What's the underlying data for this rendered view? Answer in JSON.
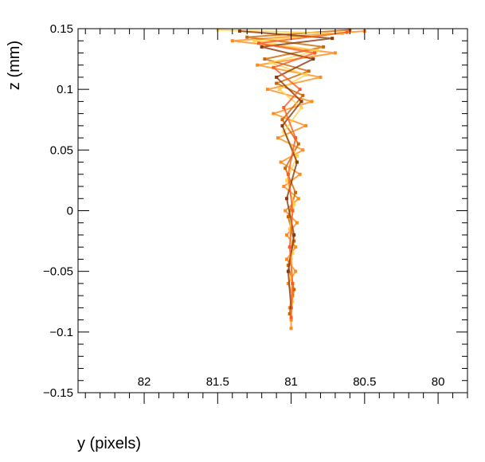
{
  "chart_data": {
    "type": "scatter",
    "title": "",
    "xlabel": "y (pixels)",
    "ylabel": "z (mm)",
    "xlim": [
      82.45,
      79.8
    ],
    "ylim": [
      -0.15,
      0.15
    ],
    "x_axis_reversed": true,
    "grid": false,
    "legend": "none",
    "xticks": [
      {
        "value": 82,
        "label": "82"
      },
      {
        "value": 81.5,
        "label": "81.5"
      },
      {
        "value": 81,
        "label": "81"
      },
      {
        "value": 80.5,
        "label": "80.5"
      },
      {
        "value": 80,
        "label": "80"
      }
    ],
    "yticks": [
      {
        "value": 0.15,
        "label": "0.15"
      },
      {
        "value": 0.1,
        "label": "0.1"
      },
      {
        "value": 0.05,
        "label": "0.05"
      },
      {
        "value": 0,
        "label": "0"
      },
      {
        "value": -0.05,
        "label": "−0.05"
      },
      {
        "value": -0.1,
        "label": "−0.1"
      },
      {
        "value": -0.15,
        "label": "−0.15"
      }
    ],
    "series": [
      {
        "color": "#ff8c1a",
        "points": [
          [
            81.0,
            -0.097
          ],
          [
            81.0,
            -0.09
          ],
          [
            81.01,
            -0.08
          ],
          [
            80.99,
            -0.07
          ],
          [
            81.02,
            -0.06
          ],
          [
            80.97,
            -0.05
          ],
          [
            81.03,
            -0.04
          ],
          [
            80.97,
            -0.03
          ],
          [
            81.03,
            -0.02
          ],
          [
            80.96,
            -0.01
          ],
          [
            81.04,
            0.0
          ],
          [
            80.95,
            0.01
          ],
          [
            81.05,
            0.02
          ],
          [
            80.94,
            0.03
          ],
          [
            81.07,
            0.04
          ],
          [
            80.92,
            0.05
          ],
          [
            81.09,
            0.06
          ],
          [
            80.9,
            0.07
          ],
          [
            81.12,
            0.08
          ],
          [
            80.86,
            0.09
          ],
          [
            81.16,
            0.1
          ],
          [
            80.8,
            0.11
          ],
          [
            81.23,
            0.12
          ],
          [
            80.7,
            0.13
          ],
          [
            81.4,
            0.14
          ],
          [
            80.5,
            0.148
          ]
        ]
      },
      {
        "color": "#cc6600",
        "points": [
          [
            81.01,
            -0.085
          ],
          [
            80.98,
            -0.065
          ],
          [
            81.02,
            -0.045
          ],
          [
            80.98,
            -0.025
          ],
          [
            81.02,
            -0.005
          ],
          [
            80.97,
            0.015
          ],
          [
            81.04,
            0.035
          ],
          [
            80.95,
            0.055
          ],
          [
            81.06,
            0.075
          ],
          [
            80.92,
            0.095
          ],
          [
            81.1,
            0.105
          ],
          [
            80.88,
            0.115
          ],
          [
            81.18,
            0.125
          ],
          [
            80.78,
            0.135
          ],
          [
            81.3,
            0.143
          ],
          [
            80.6,
            0.149
          ]
        ]
      },
      {
        "color": "#ffd24d",
        "points": [
          [
            80.99,
            -0.075
          ],
          [
            81.0,
            -0.055
          ],
          [
            80.99,
            -0.035
          ],
          [
            81.01,
            -0.015
          ],
          [
            80.98,
            0.005
          ],
          [
            81.03,
            0.025
          ],
          [
            80.96,
            0.045
          ],
          [
            81.05,
            0.065
          ],
          [
            80.93,
            0.085
          ],
          [
            81.08,
            0.1
          ],
          [
            80.9,
            0.112
          ],
          [
            81.14,
            0.122
          ],
          [
            80.82,
            0.132
          ],
          [
            81.25,
            0.14
          ],
          [
            80.65,
            0.146
          ],
          [
            81.5,
            0.149
          ]
        ]
      },
      {
        "color": "#8b3a0a",
        "points": [
          [
            81.0,
            -0.08
          ],
          [
            81.02,
            -0.05
          ],
          [
            80.98,
            -0.02
          ],
          [
            81.03,
            0.01
          ],
          [
            80.96,
            0.04
          ],
          [
            81.06,
            0.07
          ],
          [
            80.93,
            0.09
          ],
          [
            81.1,
            0.11
          ],
          [
            80.85,
            0.125
          ],
          [
            81.2,
            0.135
          ],
          [
            80.72,
            0.142
          ],
          [
            81.35,
            0.148
          ]
        ]
      },
      {
        "color": "#ff5a1f",
        "points": [
          [
            81.0,
            -0.088
          ],
          [
            80.99,
            -0.06
          ],
          [
            81.01,
            -0.03
          ],
          [
            80.99,
            0.0
          ],
          [
            81.02,
            0.03
          ],
          [
            80.97,
            0.06
          ],
          [
            81.05,
            0.085
          ],
          [
            80.94,
            0.1
          ],
          [
            81.12,
            0.118
          ],
          [
            80.84,
            0.13
          ],
          [
            81.22,
            0.138
          ],
          [
            80.62,
            0.147
          ]
        ]
      }
    ]
  }
}
